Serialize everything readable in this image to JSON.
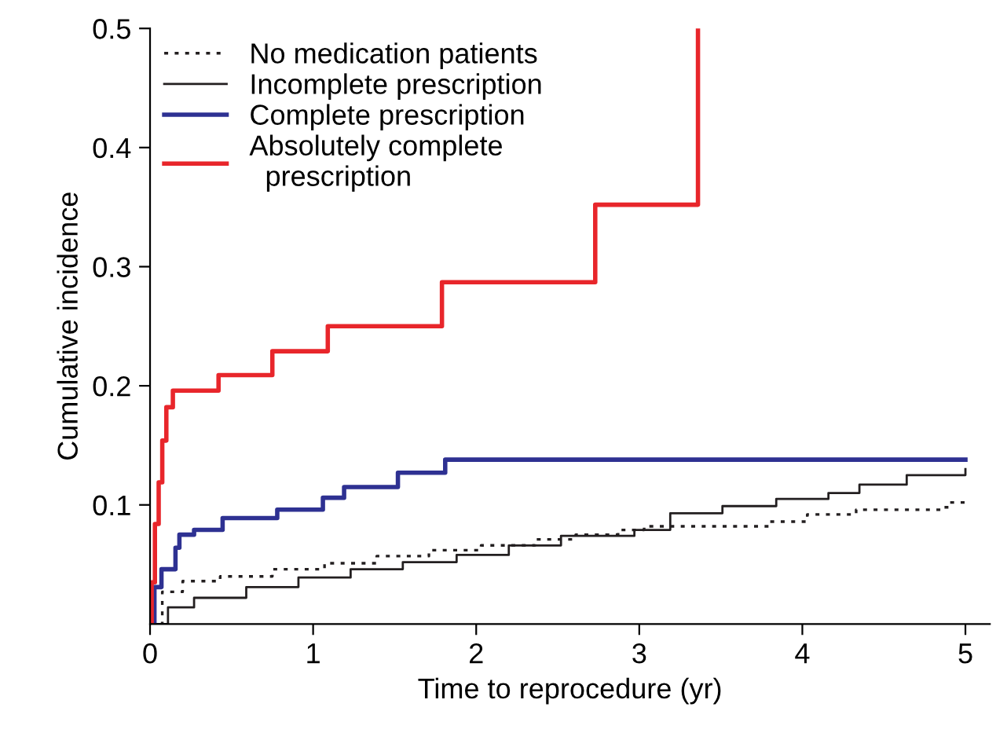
{
  "chart_data": {
    "type": "step",
    "xlabel": "Time to reprocedure (yr)",
    "ylabel": "Cumulative incidence",
    "xlim": [
      0,
      5.15
    ],
    "xticks": [
      0,
      1,
      2,
      3,
      4,
      5
    ],
    "ylim": [
      0,
      0.5
    ],
    "yticks": [
      0.1,
      0.2,
      0.3,
      0.4,
      0.5
    ],
    "grid": false,
    "legend": "top left",
    "series": [
      {
        "name": "No medication patients",
        "color": "#231f20",
        "line_style": "dotted",
        "x": [
          0,
          0.02,
          0.075,
          0.2,
          0.43,
          0.75,
          1.07,
          1.39,
          1.71,
          2.03,
          2.36,
          2.61,
          2.87,
          3.03,
          3.41,
          3.8,
          4.03,
          4.27,
          4.33,
          4.85,
          4.9,
          5.0
        ],
        "values": [
          0,
          0,
          0.027,
          0.036,
          0.04,
          0.046,
          0.051,
          0.057,
          0.062,
          0.066,
          0.071,
          0.075,
          0.079,
          0.082,
          0.082,
          0.086,
          0.092,
          0.092,
          0.096,
          0.098,
          0.102,
          0.102
        ]
      },
      {
        "name": "Incomplete prescription",
        "color": "#231f20",
        "line_style": "solid",
        "x": [
          0,
          0.03,
          0.11,
          0.27,
          0.59,
          0.91,
          1.23,
          1.55,
          1.88,
          2.2,
          2.52,
          2.97,
          3.19,
          3.51,
          3.84,
          4.16,
          4.35,
          4.64,
          4.85,
          5.0
        ],
        "values": [
          0,
          0,
          0.014,
          0.022,
          0.031,
          0.039,
          0.046,
          0.052,
          0.058,
          0.066,
          0.074,
          0.079,
          0.093,
          0.099,
          0.105,
          0.11,
          0.117,
          0.125,
          0.125,
          0.13
        ]
      },
      {
        "name": "Complete prescription",
        "color": "#2e3192",
        "line_style": "solid",
        "x": [
          0,
          0.027,
          0.07,
          0.156,
          0.18,
          0.27,
          0.445,
          0.78,
          1.06,
          1.19,
          1.52,
          1.81,
          5.0
        ],
        "values": [
          0,
          0.031,
          0.046,
          0.064,
          0.075,
          0.079,
          0.089,
          0.096,
          0.106,
          0.115,
          0.127,
          0.138,
          0.138
        ]
      },
      {
        "name": "Absolutely complete\n  prescription",
        "color": "#e8262b",
        "line_style": "solid",
        "x": [
          0,
          0.01,
          0.03,
          0.053,
          0.075,
          0.1,
          0.14,
          0.42,
          0.75,
          1.09,
          1.79,
          2.73,
          3.36
        ],
        "values": [
          0,
          0.035,
          0.084,
          0.119,
          0.154,
          0.182,
          0.196,
          0.209,
          0.229,
          0.25,
          0.287,
          0.352,
          0.5
        ]
      }
    ]
  }
}
